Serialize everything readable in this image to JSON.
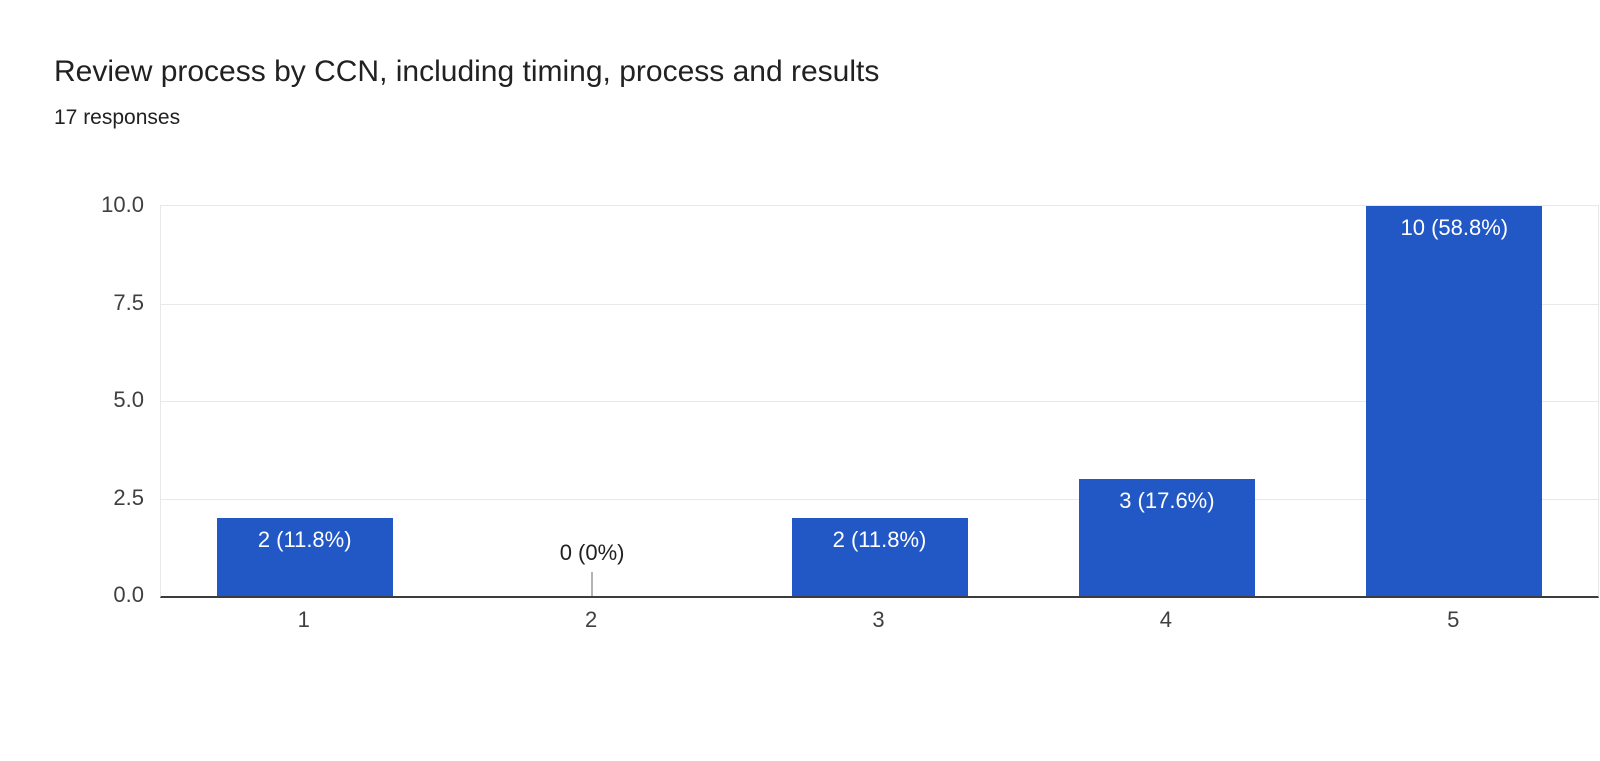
{
  "header": {
    "title": "Review process by CCN, including timing, process and results",
    "subtitle": "17 responses"
  },
  "chart_data": {
    "type": "bar",
    "title": "Review process by CCN, including timing, process and results",
    "subtitle": "17 responses",
    "categories": [
      "1",
      "2",
      "3",
      "4",
      "5"
    ],
    "values": [
      2,
      0,
      2,
      3,
      10
    ],
    "labels": [
      "2 (11.8%)",
      "0 (0%)",
      "2 (11.8%)",
      "3 (17.6%)",
      "10 (58.8%)"
    ],
    "xlabel": "",
    "ylabel": "",
    "ylim": [
      0,
      10
    ],
    "yticks": [
      "10.0",
      "7.5",
      "5.0",
      "2.5",
      "0.0"
    ],
    "grid": true,
    "legend_position": "none",
    "colors": {
      "bar": "#2158c5",
      "bar_label_text": "#ffffff",
      "grid": "#e8e8e8",
      "axis": "#3c3c3c",
      "text": "#212121",
      "tick_text": "#3f3f3f",
      "zero_stem": "#b3b3b3"
    }
  }
}
